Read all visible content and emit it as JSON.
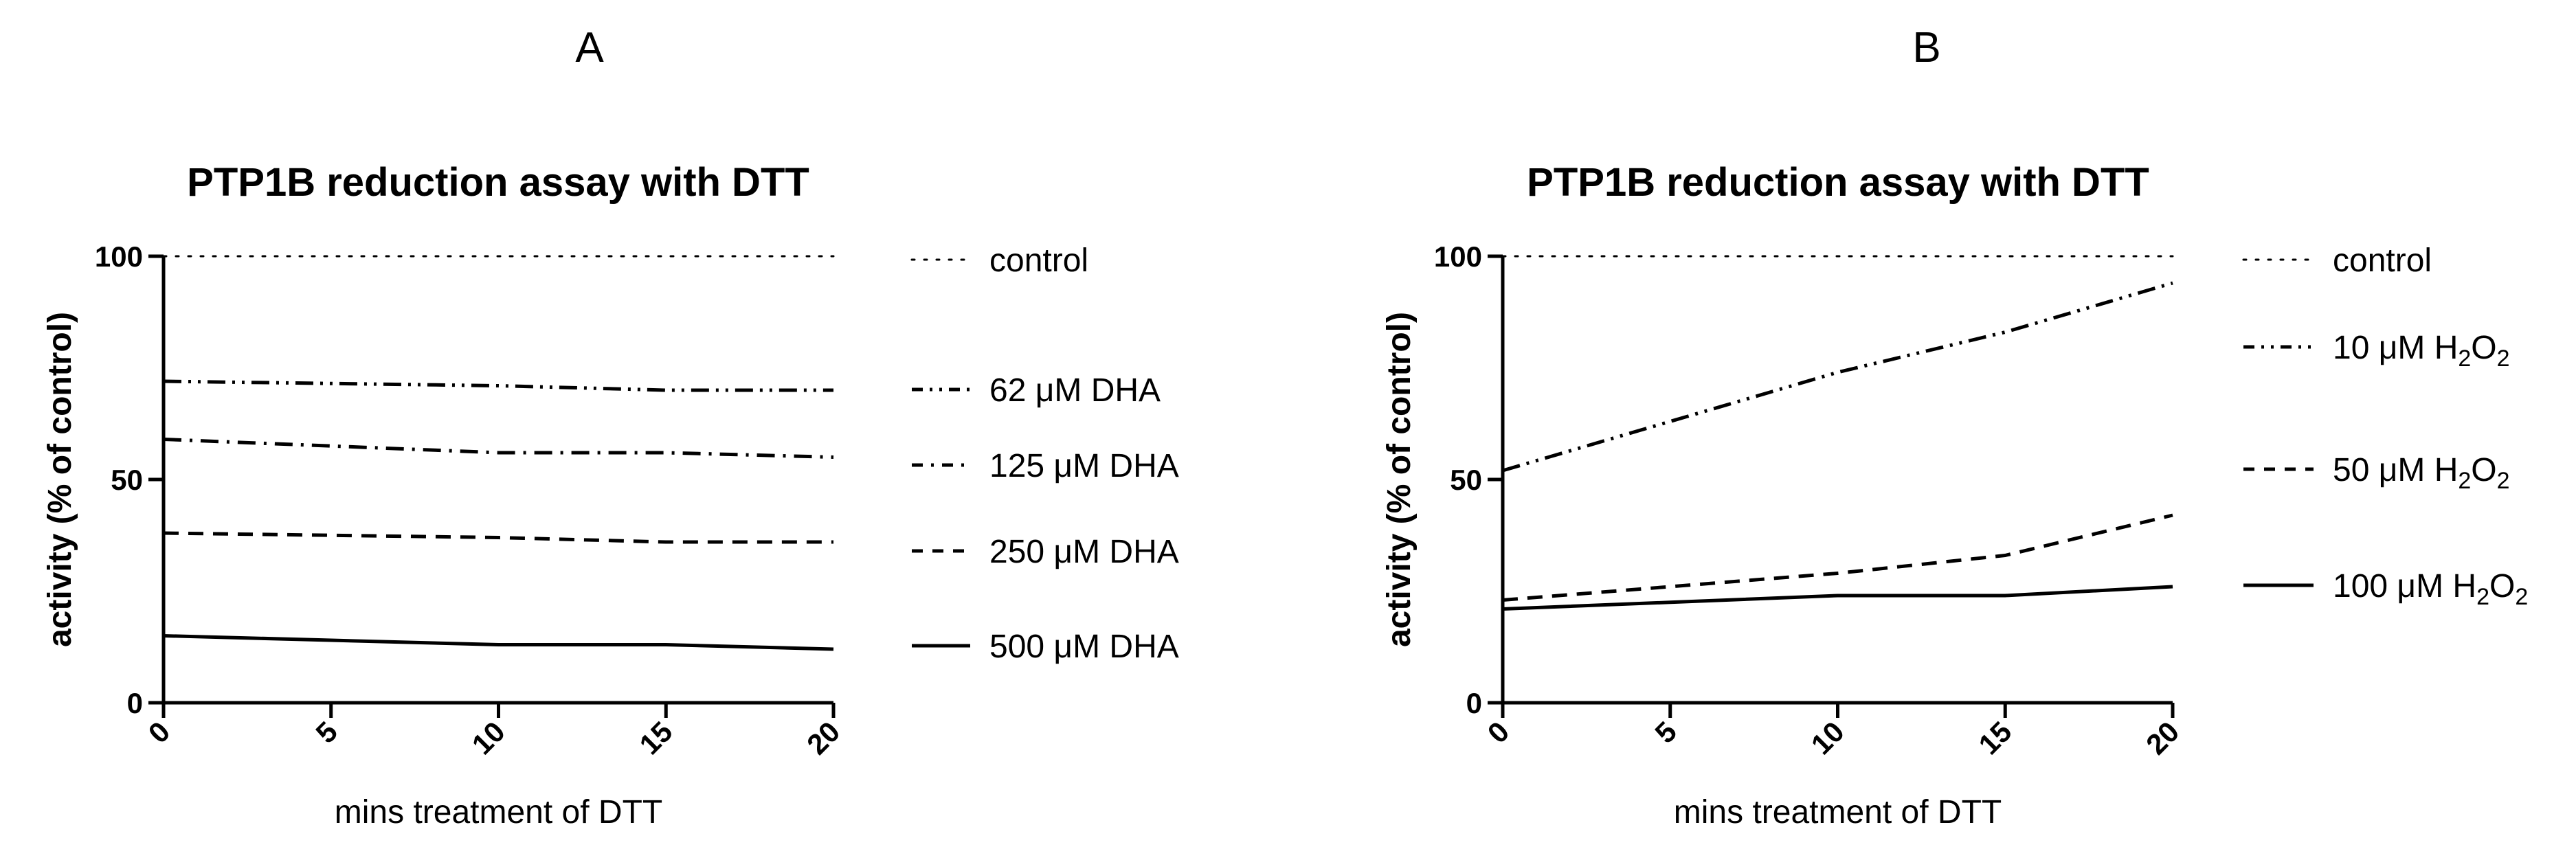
{
  "figure": {
    "panel_a_letter": "A",
    "panel_b_letter": "B"
  },
  "chart_data": [
    {
      "type": "line",
      "panel": "A",
      "title": "PTP1B reduction assay with DTT",
      "xlabel": "mins treatment of DTT",
      "ylabel": "activity (% of control)",
      "xlim": [
        0,
        20
      ],
      "ylim": [
        0,
        100
      ],
      "xticks": [
        0,
        5,
        10,
        15,
        20
      ],
      "yticks": [
        0,
        50,
        100
      ],
      "grid": false,
      "legend_position": "right",
      "x": [
        0,
        5,
        10,
        15,
        20
      ],
      "series": [
        {
          "name": "control",
          "style": "dotted",
          "values": [
            100,
            100,
            100,
            100,
            100
          ]
        },
        {
          "name": "62 μM DHA",
          "style": "dash-dot-dot",
          "values": [
            72,
            71.5,
            71,
            70,
            70
          ]
        },
        {
          "name": "125 μM DHA",
          "style": "dash-dot",
          "values": [
            59,
            57.5,
            56,
            56,
            55
          ]
        },
        {
          "name": "250 μM DHA",
          "style": "dashed",
          "values": [
            38,
            37.5,
            37,
            36,
            36
          ]
        },
        {
          "name": "500 μM DHA",
          "style": "solid",
          "values": [
            15,
            14,
            13,
            13,
            12
          ]
        }
      ]
    },
    {
      "type": "line",
      "panel": "B",
      "title": "PTP1B reduction assay with DTT",
      "xlabel": "mins treatment of DTT",
      "ylabel": "activity (% of control)",
      "xlim": [
        0,
        20
      ],
      "ylim": [
        0,
        100
      ],
      "xticks": [
        0,
        5,
        10,
        15,
        20
      ],
      "yticks": [
        0,
        50,
        100
      ],
      "grid": false,
      "legend_position": "right",
      "x": [
        0,
        5,
        10,
        15,
        20
      ],
      "series": [
        {
          "name": "control",
          "style": "dotted",
          "values": [
            100,
            100,
            100,
            100,
            100
          ]
        },
        {
          "name": "10 μM H2O2",
          "name_parts": [
            "10 μM H",
            "2",
            "O",
            "2"
          ],
          "style": "dash-dot-dot",
          "values": [
            52,
            63,
            74,
            83,
            94
          ]
        },
        {
          "name": "50 μM  H2O2",
          "name_parts": [
            "50 μM  H",
            "2",
            "O",
            "2"
          ],
          "style": "dashed",
          "values": [
            23,
            26,
            29,
            33,
            42
          ]
        },
        {
          "name": "100 μM H2O2",
          "name_parts": [
            "100 μM H",
            "2",
            "O",
            "2"
          ],
          "style": "solid",
          "values": [
            21,
            22.5,
            24,
            24,
            26
          ]
        }
      ]
    }
  ]
}
